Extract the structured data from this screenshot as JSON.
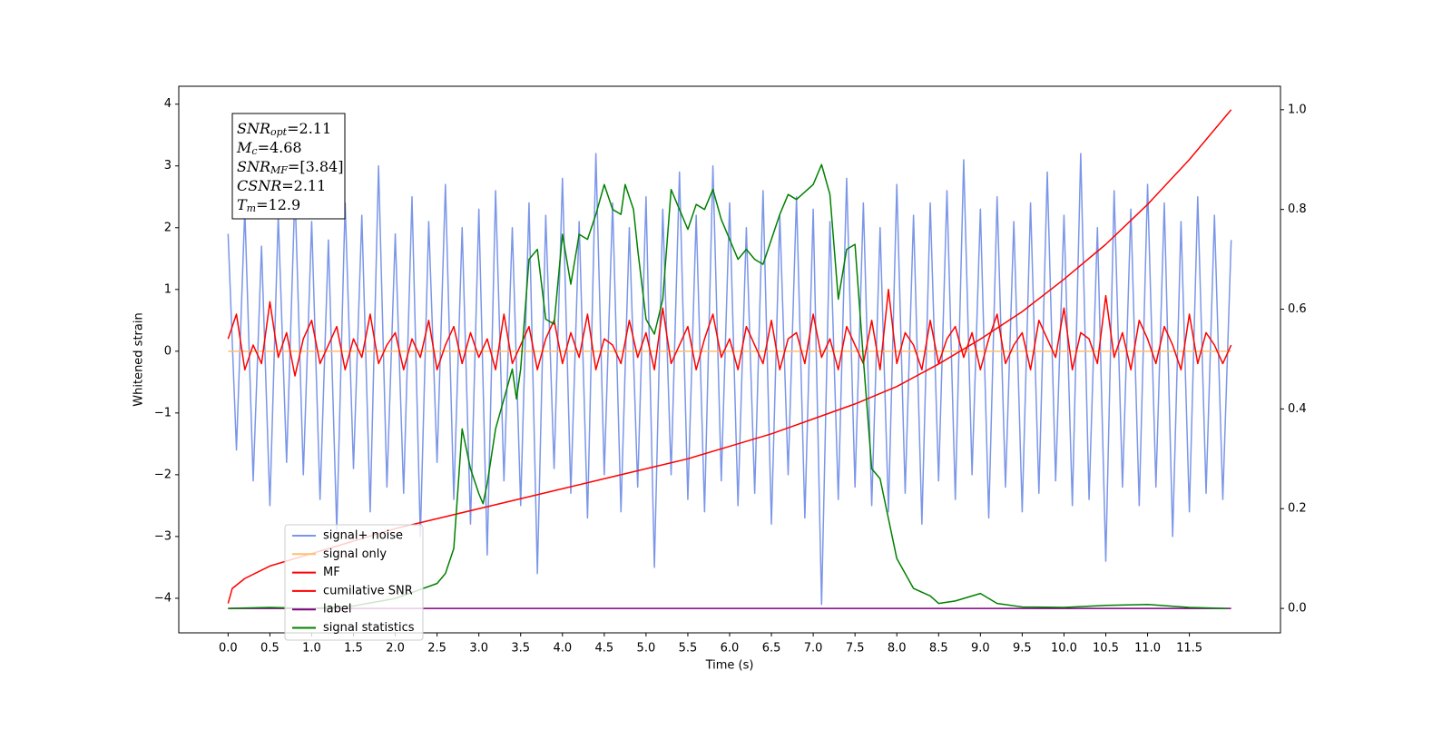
{
  "chart_data": {
    "type": "line",
    "xlabel": "Time (s)",
    "ylabel": "Whitened strain",
    "xlim": [
      -0.59,
      12.59
    ],
    "ylim": [
      -4.56,
      4.29
    ],
    "y2lim": [
      -0.049,
      1.047
    ],
    "xticks": [
      {
        "value": 0,
        "label": "0.0"
      },
      0.5,
      {
        "value": 1,
        "label": "1.0"
      },
      1.5,
      {
        "value": 2,
        "label": "2.0"
      },
      2.5,
      {
        "value": 3,
        "label": "3.0"
      },
      3.5,
      {
        "value": 4,
        "label": "4.0"
      },
      4.5,
      {
        "value": 5,
        "label": "5.0"
      },
      5.5,
      {
        "value": 6,
        "label": "6.0"
      },
      6.5,
      {
        "value": 7,
        "label": "7.0"
      },
      7.5,
      {
        "value": 8,
        "label": "8.0"
      },
      8.5,
      {
        "value": 9,
        "label": "9.0"
      },
      9.5,
      {
        "value": 10,
        "label": "10.0"
      },
      10.5,
      {
        "value": 11,
        "label": "11.0"
      },
      11.5
    ],
    "yticks": [
      {
        "value": -4,
        "label": "−4"
      },
      {
        "value": -3,
        "label": "−3"
      },
      {
        "value": -2,
        "label": "−2"
      },
      {
        "value": -1,
        "label": "−1"
      },
      0,
      1,
      2,
      3,
      4
    ],
    "y2ticks": [
      {
        "value": 0,
        "label": "0.0"
      },
      0.2,
      0.4,
      0.6,
      0.8,
      {
        "value": 1,
        "label": "1.0"
      }
    ],
    "legend": "lower left",
    "annotation": [
      {
        "symbol": "SNR",
        "sub": "opt",
        "text": "=2.11"
      },
      {
        "symbol": "M",
        "sub": "c",
        "text": "=4.68"
      },
      {
        "symbol": "SNR",
        "sub": "MF",
        "text": "=[3.84]"
      },
      {
        "symbol": "CSNR",
        "sub": null,
        "text": "=2.11"
      },
      {
        "symbol": "T",
        "sub": "m",
        "text": "=12.9"
      }
    ],
    "x": [
      0,
      0.1,
      0.2,
      0.3,
      0.4,
      0.5,
      0.6,
      0.7,
      0.8,
      0.9,
      1,
      1.1,
      1.2,
      1.3,
      1.4,
      1.5,
      1.6,
      1.7,
      1.8,
      1.9,
      2,
      2.1,
      2.2,
      2.3,
      2.4,
      2.5,
      2.6,
      2.7,
      2.8,
      2.9,
      3,
      3.1,
      3.2,
      3.3,
      3.4,
      3.5,
      3.6,
      3.7,
      3.8,
      3.9,
      4,
      4.1,
      4.2,
      4.3,
      4.4,
      4.5,
      4.6,
      4.7,
      4.8,
      4.9,
      5,
      5.1,
      5.2,
      5.3,
      5.4,
      5.5,
      5.6,
      5.7,
      5.8,
      5.9,
      6,
      6.1,
      6.2,
      6.3,
      6.4,
      6.5,
      6.6,
      6.7,
      6.8,
      6.9,
      7,
      7.1,
      7.2,
      7.3,
      7.4,
      7.5,
      7.6,
      7.7,
      7.8,
      7.9,
      8,
      8.1,
      8.2,
      8.3,
      8.4,
      8.5,
      8.6,
      8.7,
      8.8,
      8.9,
      9,
      9.1,
      9.2,
      9.3,
      9.4,
      9.5,
      9.6,
      9.7,
      9.8,
      9.9,
      10,
      10.1,
      10.2,
      10.3,
      10.4,
      10.5,
      10.6,
      10.7,
      10.8,
      10.9,
      11,
      11.1,
      11.2,
      11.3,
      11.4,
      11.5,
      11.6,
      11.7,
      11.8,
      11.9,
      12
    ],
    "series": [
      {
        "name": "signal+ noise",
        "color": "#7b96e8",
        "values": [
          1.9,
          -1.6,
          2.3,
          -2.1,
          1.7,
          -2.5,
          2.2,
          -1.8,
          2.6,
          -2.0,
          2.1,
          -2.4,
          1.8,
          -2.9,
          2.4,
          -1.9,
          2.2,
          -2.6,
          3.0,
          -2.2,
          1.9,
          -2.3,
          2.5,
          -3.0,
          2.1,
          -1.8,
          2.7,
          -2.4,
          2.0,
          -2.8,
          2.3,
          -3.3,
          2.6,
          -2.1,
          2.0,
          -2.5,
          2.4,
          -3.6,
          2.2,
          -1.9,
          2.8,
          -2.3,
          2.1,
          -2.7,
          3.2,
          -2.0,
          2.4,
          -2.6,
          2.0,
          -2.2,
          2.5,
          -3.5,
          2.3,
          -2.0,
          2.9,
          -2.4,
          2.2,
          -2.6,
          3.0,
          -2.1,
          2.4,
          -2.5,
          2.0,
          -2.3,
          2.6,
          -2.8,
          2.2,
          -2.0,
          2.5,
          -2.7,
          2.3,
          -4.1,
          2.1,
          -2.4,
          2.8,
          -2.2,
          2.4,
          -2.5,
          2.0,
          -2.6,
          2.7,
          -2.3,
          2.2,
          -2.8,
          2.4,
          -2.1,
          2.6,
          -2.4,
          3.1,
          -2.0,
          2.3,
          -2.7,
          2.5,
          -2.2,
          2.1,
          -2.6,
          2.4,
          -2.3,
          2.9,
          -2.1,
          2.2,
          -2.5,
          3.2,
          -2.4,
          2.0,
          -3.4,
          2.6,
          -2.2,
          2.3,
          -2.5,
          2.7,
          -2.2,
          2.4,
          -3.0,
          2.1,
          -2.6,
          2.5,
          -2.3,
          2.2,
          -2.4,
          1.8
        ]
      },
      {
        "name": "signal only",
        "color": "#ffbf70",
        "x": [
          0,
          12
        ],
        "values": [
          0,
          0
        ]
      },
      {
        "name": "MF",
        "color": "#ff0000",
        "values": [
          0.2,
          0.6,
          -0.3,
          0.1,
          -0.2,
          0.8,
          -0.1,
          0.3,
          -0.4,
          0.2,
          0.5,
          -0.2,
          0.1,
          0.4,
          -0.3,
          0.2,
          -0.1,
          0.6,
          -0.2,
          0.1,
          0.3,
          -0.3,
          0.2,
          -0.1,
          0.5,
          -0.3,
          0.1,
          0.4,
          -0.2,
          0.3,
          -0.1,
          0.2,
          -0.3,
          0.6,
          -0.2,
          0.1,
          0.4,
          -0.3,
          0.2,
          0.5,
          -0.2,
          0.3,
          -0.1,
          0.6,
          -0.3,
          0.2,
          0.1,
          -0.2,
          0.5,
          -0.1,
          0.3,
          -0.3,
          0.7,
          -0.2,
          0.1,
          0.4,
          -0.3,
          0.2,
          0.6,
          -0.1,
          0.2,
          -0.3,
          0.4,
          0.1,
          -0.2,
          0.5,
          -0.3,
          0.2,
          0.3,
          -0.2,
          0.6,
          -0.1,
          0.2,
          -0.3,
          0.4,
          0.1,
          -0.2,
          0.5,
          -0.3,
          1.0,
          -0.2,
          0.3,
          0.1,
          -0.3,
          0.5,
          -0.2,
          0.2,
          0.4,
          -0.1,
          0.3,
          -0.3,
          0.2,
          0.6,
          -0.2,
          0.1,
          0.3,
          -0.3,
          0.5,
          0.2,
          -0.1,
          0.7,
          -0.3,
          0.3,
          0.2,
          -0.2,
          0.9,
          -0.1,
          0.3,
          -0.3,
          0.5,
          0.2,
          -0.2,
          0.4,
          0.1,
          -0.3,
          0.6,
          -0.2,
          0.3,
          0.1,
          -0.2,
          0.1
        ]
      },
      {
        "name": "cumilative SNR",
        "color": "#ff0000",
        "axis": "y2",
        "x": [
          0,
          0.05,
          0.2,
          0.5,
          1,
          1.5,
          2,
          2.5,
          3,
          3.5,
          4,
          4.5,
          5,
          5.5,
          6,
          6.5,
          7,
          7.5,
          8,
          8.5,
          9,
          9.5,
          10,
          10.5,
          11,
          11.5,
          12
        ],
        "values": [
          0.01,
          0.04,
          0.06,
          0.085,
          0.11,
          0.135,
          0.16,
          0.18,
          0.2,
          0.22,
          0.24,
          0.26,
          0.28,
          0.3,
          0.325,
          0.35,
          0.38,
          0.41,
          0.445,
          0.49,
          0.54,
          0.595,
          0.66,
          0.73,
          0.81,
          0.9,
          1.0
        ]
      },
      {
        "name": "label",
        "color": "#800080",
        "axis": "y2",
        "x": [
          0,
          12
        ],
        "values": [
          0,
          0
        ]
      },
      {
        "name": "signal statistics",
        "color": "#008000",
        "axis": "y2",
        "x": [
          0,
          0.5,
          1,
          1.5,
          2,
          2.5,
          2.6,
          2.7,
          2.8,
          2.9,
          3,
          3.05,
          3.1,
          3.2,
          3.3,
          3.4,
          3.45,
          3.5,
          3.6,
          3.7,
          3.8,
          3.9,
          4,
          4.1,
          4.2,
          4.3,
          4.4,
          4.5,
          4.6,
          4.7,
          4.75,
          4.85,
          4.9,
          5,
          5.1,
          5.2,
          5.3,
          5.4,
          5.5,
          5.6,
          5.7,
          5.8,
          5.9,
          6,
          6.1,
          6.2,
          6.3,
          6.4,
          6.5,
          6.6,
          6.7,
          6.8,
          7,
          7.1,
          7.2,
          7.3,
          7.4,
          7.5,
          7.6,
          7.7,
          7.8,
          7.9,
          8,
          8.2,
          8.4,
          8.5,
          8.7,
          8.8,
          9,
          9.2,
          9.5,
          10,
          10.5,
          11,
          11.5,
          11.95
        ],
        "values": [
          0,
          0.002,
          0,
          0.005,
          0.02,
          0.05,
          0.07,
          0.12,
          0.36,
          0.28,
          0.23,
          0.21,
          0.25,
          0.36,
          0.42,
          0.48,
          0.42,
          0.48,
          0.7,
          0.72,
          0.58,
          0.57,
          0.75,
          0.65,
          0.75,
          0.74,
          0.79,
          0.85,
          0.8,
          0.79,
          0.85,
          0.8,
          0.72,
          0.58,
          0.55,
          0.62,
          0.84,
          0.8,
          0.76,
          0.81,
          0.8,
          0.84,
          0.78,
          0.74,
          0.7,
          0.72,
          0.7,
          0.69,
          0.74,
          0.79,
          0.83,
          0.82,
          0.85,
          0.89,
          0.83,
          0.62,
          0.72,
          0.73,
          0.5,
          0.28,
          0.26,
          0.18,
          0.1,
          0.04,
          0.025,
          0.01,
          0.015,
          0.02,
          0.03,
          0.01,
          0.003,
          0.002,
          0.006,
          0.008,
          0.002,
          0
        ]
      }
    ]
  }
}
